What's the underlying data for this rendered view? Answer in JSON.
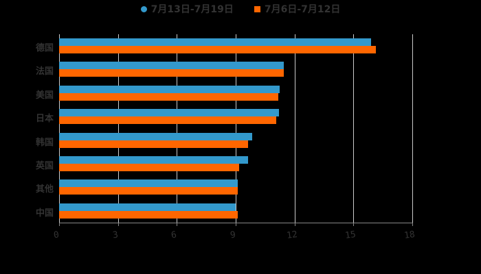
{
  "legend": [
    {
      "label": "7月13日-7月19日",
      "color": "#3399cc",
      "marker": "circle"
    },
    {
      "label": "7月6日-7月12日",
      "color": "#ff6600",
      "marker": "square"
    }
  ],
  "chart_data": {
    "type": "bar",
    "orientation": "horizontal",
    "title": "",
    "xlabel": "",
    "ylabel": "",
    "categories": [
      "德国",
      "法国",
      "美国",
      "日本",
      "韩国",
      "英国",
      "其他",
      "中国"
    ],
    "series": [
      {
        "name": "7月13日-7月19日",
        "color": "#3399cc",
        "values": [
          15.9,
          11.45,
          11.24,
          11.2,
          9.84,
          9.63,
          9.1,
          9.0
        ]
      },
      {
        "name": "7月6日-7月12日",
        "color": "#ff6600",
        "values": [
          16.15,
          11.45,
          11.17,
          11.06,
          9.63,
          9.17,
          9.1,
          9.1
        ]
      }
    ],
    "xlim": [
      0,
      18
    ],
    "xticks": [
      "0",
      "3",
      "6",
      "9",
      "12",
      "15",
      "18"
    ],
    "grid": true,
    "legend_position": "top"
  }
}
